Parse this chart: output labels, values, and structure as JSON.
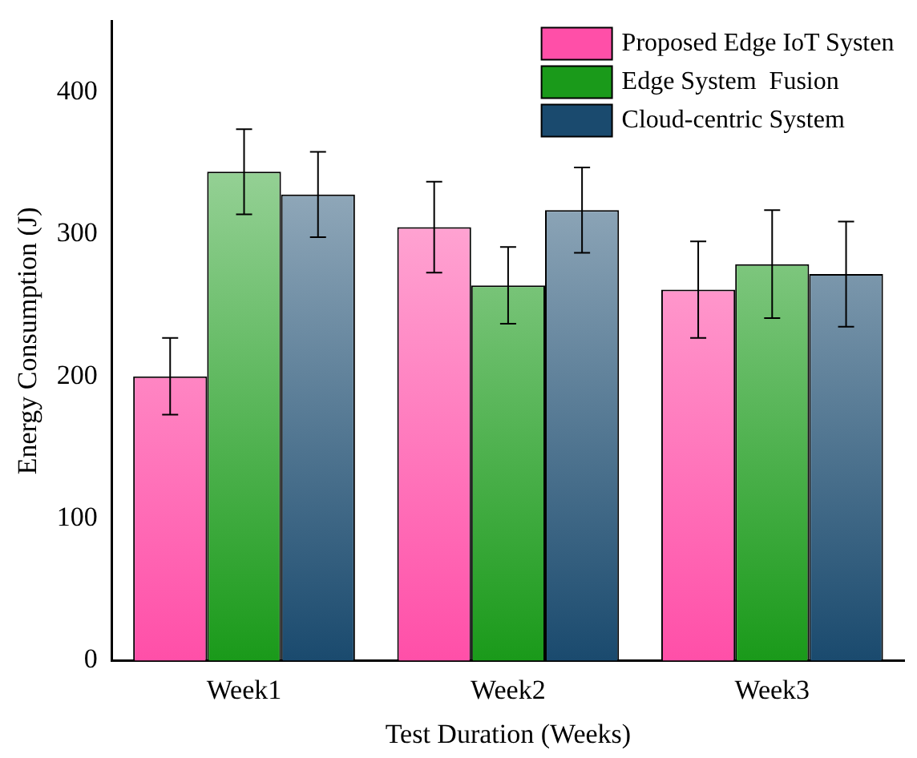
{
  "chart_data": {
    "type": "bar",
    "xlabel": "Test Duration (Weeks)",
    "ylabel": "Energy Consumption (J)",
    "categories": [
      "Week1",
      "Week2",
      "Week3"
    ],
    "series": [
      {
        "name": "Proposed Edge IoT Systen",
        "color": "#ff4fa8",
        "values": [
          200,
          305,
          261
        ],
        "errors": [
          27,
          32,
          34
        ]
      },
      {
        "name": "Edge System  Fusion",
        "color": "#1a9a1a",
        "values": [
          344,
          264,
          279
        ],
        "errors": [
          30,
          27,
          38
        ]
      },
      {
        "name": "Cloud-centric System",
        "color": "#1a4a6e",
        "values": [
          328,
          317,
          272
        ],
        "errors": [
          30,
          30,
          37
        ]
      }
    ],
    "ylim": [
      0,
      450
    ],
    "yticks": [
      0,
      100,
      200,
      300,
      400
    ],
    "grid": false,
    "legend": "top right"
  }
}
